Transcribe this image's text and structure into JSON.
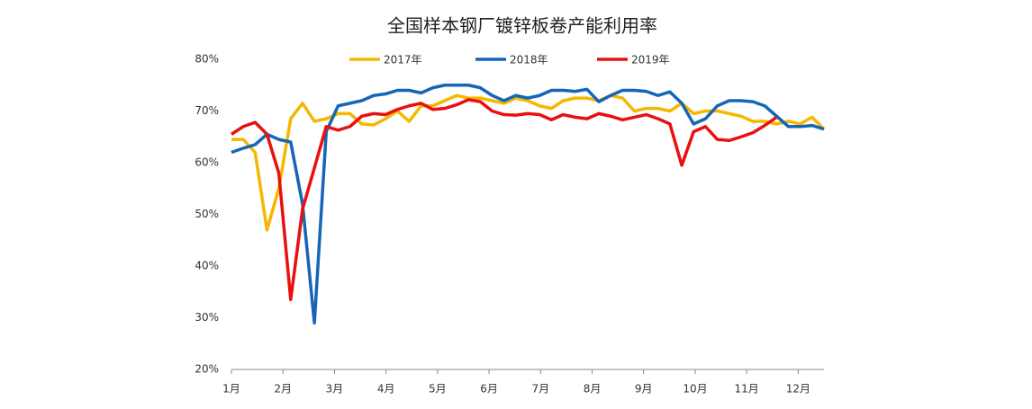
{
  "chart_data": {
    "type": "line",
    "title": "全国样本钢厂镀锌板卷产能利用率",
    "x": [
      0,
      0.23,
      0.46,
      0.69,
      0.92,
      1.15,
      1.38,
      1.61,
      1.84,
      2.07,
      2.3,
      2.53,
      2.76,
      2.99,
      3.22,
      3.45,
      3.68,
      3.91,
      4.14,
      4.37,
      4.6,
      4.83,
      5.06,
      5.29,
      5.52,
      5.75,
      5.98,
      6.21,
      6.44,
      6.67,
      6.9,
      7.13,
      7.36,
      7.59,
      7.82,
      8.05,
      8.28,
      8.51,
      8.74,
      8.97,
      9.2,
      9.43,
      9.66,
      9.89,
      10.12,
      10.35,
      10.58,
      10.81,
      11.04,
      11.27,
      11.5
    ],
    "xlim": [
      0,
      11.5
    ],
    "xticks": [
      {
        "value": 0,
        "label": "1月"
      },
      {
        "value": 1,
        "label": "2月"
      },
      {
        "value": 2,
        "label": "3月"
      },
      {
        "value": 3,
        "label": "4月"
      },
      {
        "value": 4,
        "label": "5月"
      },
      {
        "value": 5,
        "label": "6月"
      },
      {
        "value": 6,
        "label": "7月"
      },
      {
        "value": 7,
        "label": "8月"
      },
      {
        "value": 8,
        "label": "9月"
      },
      {
        "value": 9,
        "label": "10月"
      },
      {
        "value": 10,
        "label": "11月"
      },
      {
        "value": 11,
        "label": "12月"
      }
    ],
    "ylim": [
      20,
      80
    ],
    "yticks": [
      {
        "value": 20,
        "label": "20%"
      },
      {
        "value": 30,
        "label": "30%"
      },
      {
        "value": 40,
        "label": "40%"
      },
      {
        "value": 50,
        "label": "50%"
      },
      {
        "value": 60,
        "label": "60%"
      },
      {
        "value": 70,
        "label": "70%"
      },
      {
        "value": 80,
        "label": "80%"
      }
    ],
    "grid": false,
    "series": [
      {
        "name": "2017年",
        "color": "#f5b800",
        "values": [
          64.5,
          64.5,
          62,
          47,
          55,
          68.5,
          71.5,
          68,
          68.5,
          69.5,
          69.5,
          67.5,
          67.3,
          68.5,
          70,
          68,
          71,
          71,
          72,
          73,
          72.5,
          72.5,
          72,
          71.5,
          72.5,
          72,
          71,
          70.5,
          72,
          72.5,
          72.5,
          72,
          73,
          72.5,
          70,
          70.5,
          70.5,
          70,
          71.5,
          69.5,
          70,
          70,
          69.5,
          69,
          68,
          68,
          67.5,
          68,
          67.5,
          68.8,
          66.5
        ]
      },
      {
        "name": "2018年",
        "color": "#1565b8",
        "values": [
          62,
          62.8,
          63.5,
          65.5,
          64.5,
          64,
          52,
          29,
          66,
          71,
          71.5,
          72,
          73,
          73.3,
          74,
          74,
          73.5,
          74.5,
          75,
          75,
          75,
          74.5,
          73,
          72,
          73,
          72.5,
          73,
          74,
          74,
          73.8,
          74.2,
          71.8,
          73,
          74,
          74,
          73.8,
          73,
          73.7,
          71.5,
          67.5,
          68.5,
          71,
          72,
          72,
          71.8,
          71,
          69,
          67,
          67,
          67.2,
          66.5
        ]
      },
      {
        "name": "2019年",
        "color": "#e81010",
        "values": [
          65.5,
          67,
          67.8,
          65.5,
          58,
          33.5,
          51,
          59,
          67,
          66.3,
          67,
          69,
          69.5,
          69.3,
          70.3,
          71,
          71.5,
          70.3,
          70.5,
          71.2,
          72.2,
          71.8,
          70,
          69.3,
          69.2,
          69.5,
          69.3,
          68.3,
          69.3,
          68.8,
          68.5,
          69.5,
          69,
          68.3,
          68.8,
          69.3,
          68.5,
          67.5,
          59.5,
          66,
          67,
          64.5,
          64.3,
          65,
          65.8,
          67.2,
          68.8,
          null,
          null,
          null,
          null
        ]
      }
    ]
  }
}
